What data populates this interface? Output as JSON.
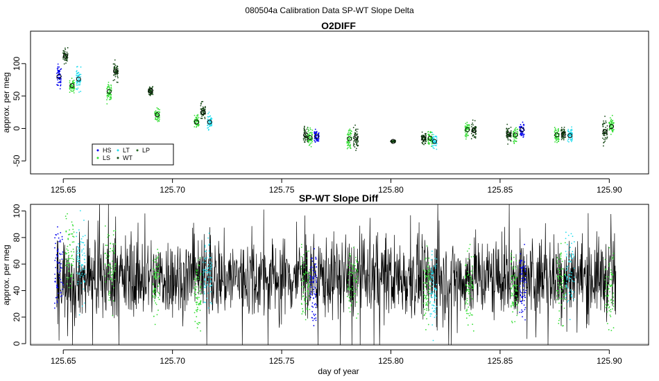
{
  "figure_title": "080504a   Calibration Data SP-WT Slope Delta",
  "colors": {
    "HS": "#0000ee",
    "LS": "#33dd33",
    "LT": "#22ddee",
    "WT": "#114411",
    "LP": "#226622",
    "black": "#000000",
    "gray": "#bbbbbb"
  },
  "chart_data": [
    {
      "type": "scatter",
      "title": "O2DIFF",
      "xlabel": "",
      "ylabel": "approx. per meg",
      "xlim": [
        125.635,
        125.918
      ],
      "ylim": [
        -70,
        150
      ],
      "xticks": [
        125.65,
        125.7,
        125.75,
        125.8,
        125.85,
        125.9
      ],
      "xtick_labels": [
        "125.65",
        "125.70",
        "125.75",
        "125.80",
        "125.85",
        "125.90"
      ],
      "yticks": [
        -50,
        0,
        50,
        100
      ],
      "ytick_labels": [
        "-50",
        "0",
        "50",
        "100"
      ],
      "legend": {
        "position": "bottom-left",
        "entries": [
          {
            "label": "HS",
            "series": "HS"
          },
          {
            "label": "LS",
            "series": "LS"
          },
          {
            "label": "LT",
            "series": "LT"
          },
          {
            "label": "WT",
            "series": "WT"
          },
          {
            "label": "LP",
            "series": "LP"
          }
        ]
      },
      "clusters": [
        {
          "series": "HS",
          "x": 125.648,
          "mean": 80,
          "spread": 14
        },
        {
          "series": "WT",
          "x": 125.651,
          "mean": 112,
          "spread": 9
        },
        {
          "series": "LS",
          "x": 125.654,
          "mean": 66,
          "spread": 8
        },
        {
          "series": "LT",
          "x": 125.657,
          "mean": 76,
          "spread": 15
        },
        {
          "series": "LS",
          "x": 125.671,
          "mean": 57,
          "spread": 14
        },
        {
          "series": "WT",
          "x": 125.674,
          "mean": 88,
          "spread": 11
        },
        {
          "series": "WT",
          "x": 125.69,
          "mean": 58,
          "spread": 6
        },
        {
          "series": "LS",
          "x": 125.693,
          "mean": 21,
          "spread": 8
        },
        {
          "series": "LS",
          "x": 125.711,
          "mean": 10,
          "spread": 8
        },
        {
          "series": "WT",
          "x": 125.714,
          "mean": 25,
          "spread": 11
        },
        {
          "series": "LT",
          "x": 125.717,
          "mean": 10,
          "spread": 10
        },
        {
          "series": "WT",
          "x": 125.761,
          "mean": -10,
          "spread": 10
        },
        {
          "series": "LS",
          "x": 125.763,
          "mean": -14,
          "spread": 10
        },
        {
          "series": "HS",
          "x": 125.766,
          "mean": -12,
          "spread": 8
        },
        {
          "series": "LS",
          "x": 125.781,
          "mean": -16,
          "spread": 12
        },
        {
          "series": "WT",
          "x": 125.784,
          "mean": -14,
          "spread": 14
        },
        {
          "series": "WT",
          "x": 125.801,
          "mean": -20,
          "spread": 2
        },
        {
          "series": "WT",
          "x": 125.815,
          "mean": -15,
          "spread": 8
        },
        {
          "series": "LS",
          "x": 125.818,
          "mean": -15,
          "spread": 10
        },
        {
          "series": "LT",
          "x": 125.82,
          "mean": -20,
          "spread": 10
        },
        {
          "series": "LS",
          "x": 125.835,
          "mean": -2,
          "spread": 9
        },
        {
          "series": "WT",
          "x": 125.838,
          "mean": -3,
          "spread": 9
        },
        {
          "series": "WT",
          "x": 125.854,
          "mean": -9,
          "spread": 10
        },
        {
          "series": "LS",
          "x": 125.857,
          "mean": -10,
          "spread": 9
        },
        {
          "series": "HS",
          "x": 125.86,
          "mean": -2,
          "spread": 8
        },
        {
          "series": "LS",
          "x": 125.876,
          "mean": -10,
          "spread": 10
        },
        {
          "series": "WT",
          "x": 125.879,
          "mean": -9,
          "spread": 9
        },
        {
          "series": "LT",
          "x": 125.882,
          "mean": -11,
          "spread": 9
        },
        {
          "series": "WT",
          "x": 125.898,
          "mean": -5,
          "spread": 14
        },
        {
          "series": "LS",
          "x": 125.901,
          "mean": 3,
          "spread": 10
        }
      ]
    },
    {
      "type": "line",
      "title": "SP-WT Slope Diff",
      "xlabel": "day of year",
      "ylabel": "approx. per meg",
      "xlim": [
        125.635,
        125.918
      ],
      "ylim": [
        -1,
        105
      ],
      "xticks": [
        125.65,
        125.7,
        125.75,
        125.8,
        125.85,
        125.9
      ],
      "xtick_labels": [
        "125.65",
        "125.70",
        "125.75",
        "125.80",
        "125.85",
        "125.90"
      ],
      "yticks": [
        0,
        20,
        40,
        60,
        80,
        100
      ],
      "ytick_labels": [
        "0",
        "20",
        "40",
        "60",
        "80",
        "100"
      ],
      "line_x_range": [
        125.647,
        125.903
      ],
      "line_mean": 50,
      "line_spread": 15,
      "reference_line_y": 0,
      "color_segments": [
        {
          "series": "HS",
          "x_from": 125.646,
          "x_to": 125.65,
          "mean": 60
        },
        {
          "series": "LS",
          "x_from": 125.651,
          "x_to": 125.655,
          "mean": 70
        },
        {
          "series": "LT",
          "x_from": 125.656,
          "x_to": 125.66,
          "mean": 62
        },
        {
          "series": "LS",
          "x_from": 125.669,
          "x_to": 125.674,
          "mean": 58
        },
        {
          "series": "LS",
          "x_from": 125.691,
          "x_to": 125.694,
          "mean": 45
        },
        {
          "series": "LS",
          "x_from": 125.71,
          "x_to": 125.713,
          "mean": 40
        },
        {
          "series": "LT",
          "x_from": 125.714,
          "x_to": 125.718,
          "mean": 55
        },
        {
          "series": "LS",
          "x_from": 125.759,
          "x_to": 125.763,
          "mean": 45
        },
        {
          "series": "HS",
          "x_from": 125.763,
          "x_to": 125.766,
          "mean": 42
        },
        {
          "series": "LS",
          "x_from": 125.78,
          "x_to": 125.785,
          "mean": 48
        },
        {
          "series": "LS",
          "x_from": 125.815,
          "x_to": 125.818,
          "mean": 45
        },
        {
          "series": "LT",
          "x_from": 125.818,
          "x_to": 125.821,
          "mean": 40
        },
        {
          "series": "LS",
          "x_from": 125.834,
          "x_to": 125.838,
          "mean": 42
        },
        {
          "series": "LS",
          "x_from": 125.855,
          "x_to": 125.858,
          "mean": 42
        },
        {
          "series": "HS",
          "x_from": 125.859,
          "x_to": 125.862,
          "mean": 45
        },
        {
          "series": "LS",
          "x_from": 125.876,
          "x_to": 125.88,
          "mean": 45
        },
        {
          "series": "LT",
          "x_from": 125.88,
          "x_to": 125.884,
          "mean": 55
        },
        {
          "series": "LS",
          "x_from": 125.898,
          "x_to": 125.902,
          "mean": 40
        }
      ]
    }
  ]
}
